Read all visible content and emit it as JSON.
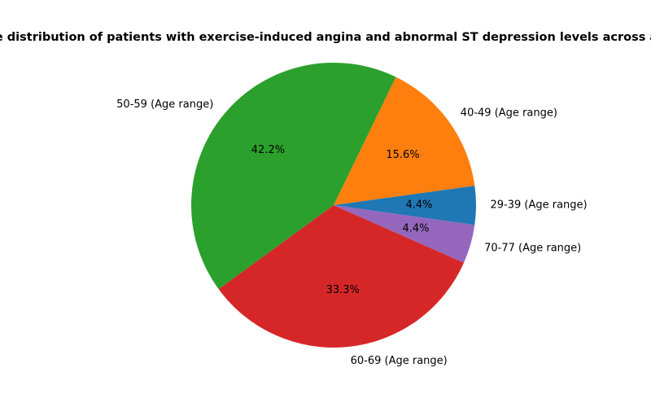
{
  "chart_data": {
    "type": "pie",
    "title": "Percentage distribution of patients with exercise-induced angina and abnormal ST depression levels across age ranges",
    "categories": [
      "29-39 (Age range)",
      "40-49 (Age range)",
      "50-59 (Age range)",
      "60-69 (Age range)",
      "70-77 (Age range)"
    ],
    "values": [
      4.4,
      15.6,
      42.2,
      33.3,
      4.4
    ],
    "value_labels": [
      "4.4%",
      "15.6%",
      "42.2%",
      "33.3%",
      "4.4%"
    ],
    "colors": [
      "#1f77b4",
      "#ff7f0e",
      "#2ca02c",
      "#d62728",
      "#9467bd"
    ],
    "start_angle_deg": -8,
    "direction": "counterclockwise",
    "legend": "none"
  }
}
